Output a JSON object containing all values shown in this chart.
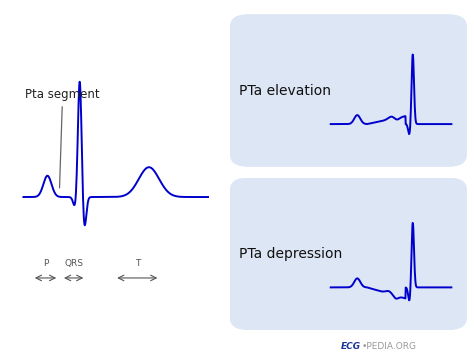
{
  "bg_color": "#ffffff",
  "ecg_color": "#0000cc",
  "box_color": "#dde6f4",
  "text_color": "#111111",
  "label_color": "#555555",
  "title_label": "Pta segment",
  "label_elevation": "PTa elevation",
  "label_depression": "PTa depression",
  "watermark_ecg": "ECG",
  "watermark_pedia": "•PEDIA.ORG",
  "watermark_color_ecg": "#1a3399",
  "watermark_color_pedia": "#999999"
}
